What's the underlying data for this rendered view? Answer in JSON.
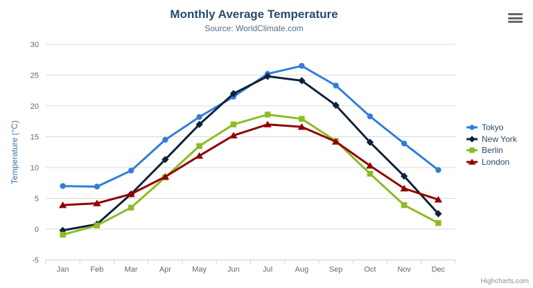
{
  "chart": {
    "title": "Monthly Average Temperature",
    "subtitle": "Source: WorldClimate.com",
    "y_axis_title": "Temperature (°C)",
    "credits": "Highcharts.com"
  },
  "colors": {
    "title": "#274b6d",
    "subtitle": "#4d6f91",
    "axis_title": "#4572A7",
    "axis_labels": "#666666",
    "grid_line": "#d8d8d8",
    "axis_line": "#c0d0e0",
    "legend_text": "#274b6d",
    "credits": "#909090",
    "menu_icon": "#666666"
  },
  "chart_data": {
    "type": "line",
    "title": "Monthly Average Temperature",
    "subtitle": "Source: WorldClimate.com",
    "xlabel": "",
    "ylabel": "Temperature (°C)",
    "ylim": [
      -5,
      30
    ],
    "y_tick_interval": 5,
    "grid": true,
    "legend_position": "right",
    "categories": [
      "Jan",
      "Feb",
      "Mar",
      "Apr",
      "May",
      "Jun",
      "Jul",
      "Aug",
      "Sep",
      "Oct",
      "Nov",
      "Dec"
    ],
    "series": [
      {
        "name": "Tokyo",
        "color": "#2f7ed8",
        "marker": "circle",
        "values": [
          7.0,
          6.9,
          9.5,
          14.5,
          18.2,
          21.5,
          25.2,
          26.5,
          23.3,
          18.3,
          13.9,
          9.6
        ]
      },
      {
        "name": "New York",
        "color": "#0d233a",
        "marker": "diamond",
        "values": [
          -0.2,
          0.8,
          5.7,
          11.3,
          17.0,
          22.0,
          24.8,
          24.1,
          20.1,
          14.1,
          8.6,
          2.5
        ]
      },
      {
        "name": "Berlin",
        "color": "#8bbc21",
        "marker": "square",
        "values": [
          -0.9,
          0.6,
          3.5,
          8.4,
          13.5,
          17.0,
          18.6,
          17.9,
          14.3,
          9.0,
          3.9,
          1.0
        ]
      },
      {
        "name": "London",
        "color": "#910000",
        "marker": "triangle",
        "values": [
          3.9,
          4.2,
          5.7,
          8.5,
          11.9,
          15.2,
          17.0,
          16.6,
          14.2,
          10.3,
          6.6,
          4.8
        ]
      }
    ]
  }
}
